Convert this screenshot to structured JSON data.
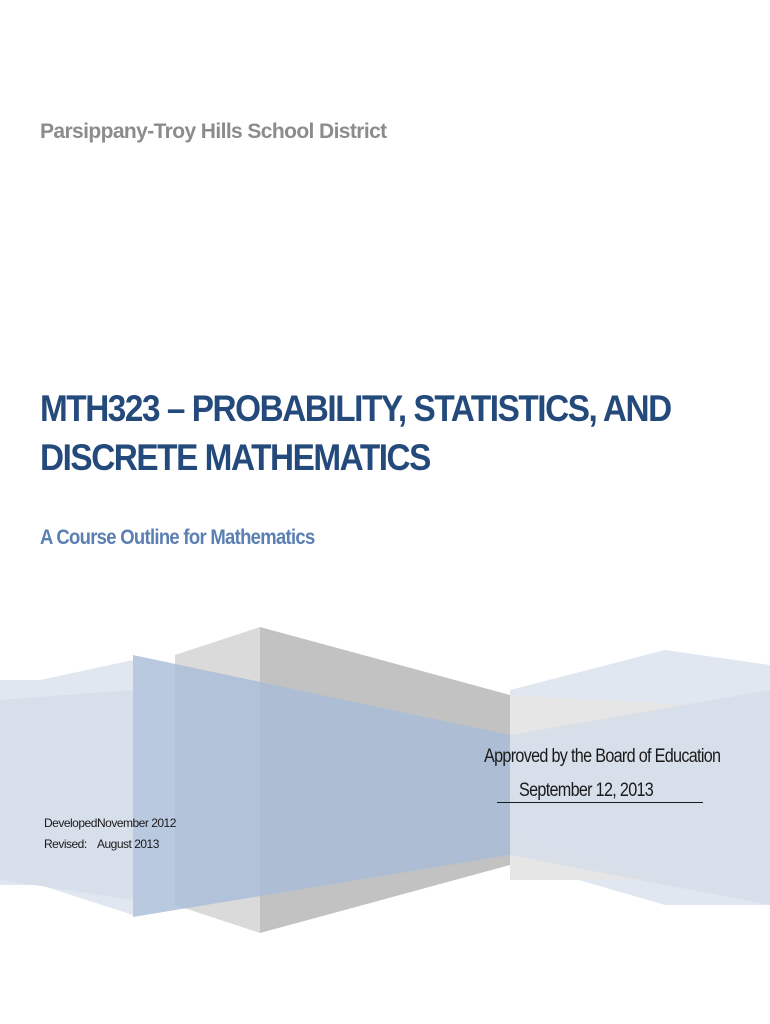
{
  "district": "Parsippany-Troy Hills School District",
  "title": {
    "line1": "MTH323 – PROBABILITY, STATISTICS, AND",
    "line2": "DISCRETE MATHEMATICS"
  },
  "subtitle": "A Course Outline for Mathematics",
  "approval": {
    "text": "Approved by the Board of Education",
    "date": "September 12, 2013"
  },
  "history": {
    "developed_label": "Developed:",
    "developed_value": "November 2012",
    "revised_label": "Revised:",
    "revised_value": "August 2013"
  },
  "colors": {
    "title": "#244a7c",
    "subtitle": "#5b7fb3",
    "district": "#8c8c8c"
  }
}
